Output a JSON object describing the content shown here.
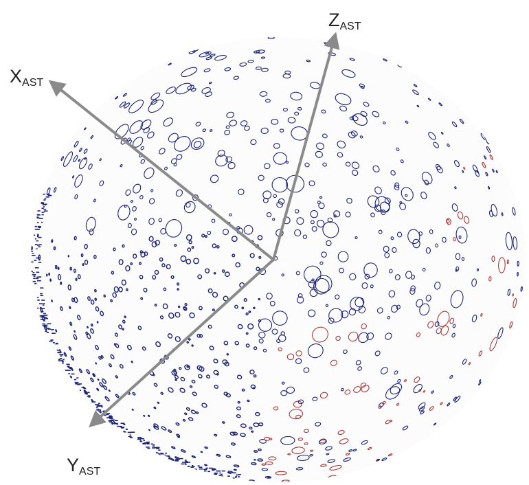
{
  "axes": [
    {
      "label": "Z",
      "subscript": "AST"
    },
    {
      "label": "X",
      "subscript": "AST"
    },
    {
      "label": "Y",
      "subscript": "AST"
    }
  ]
}
